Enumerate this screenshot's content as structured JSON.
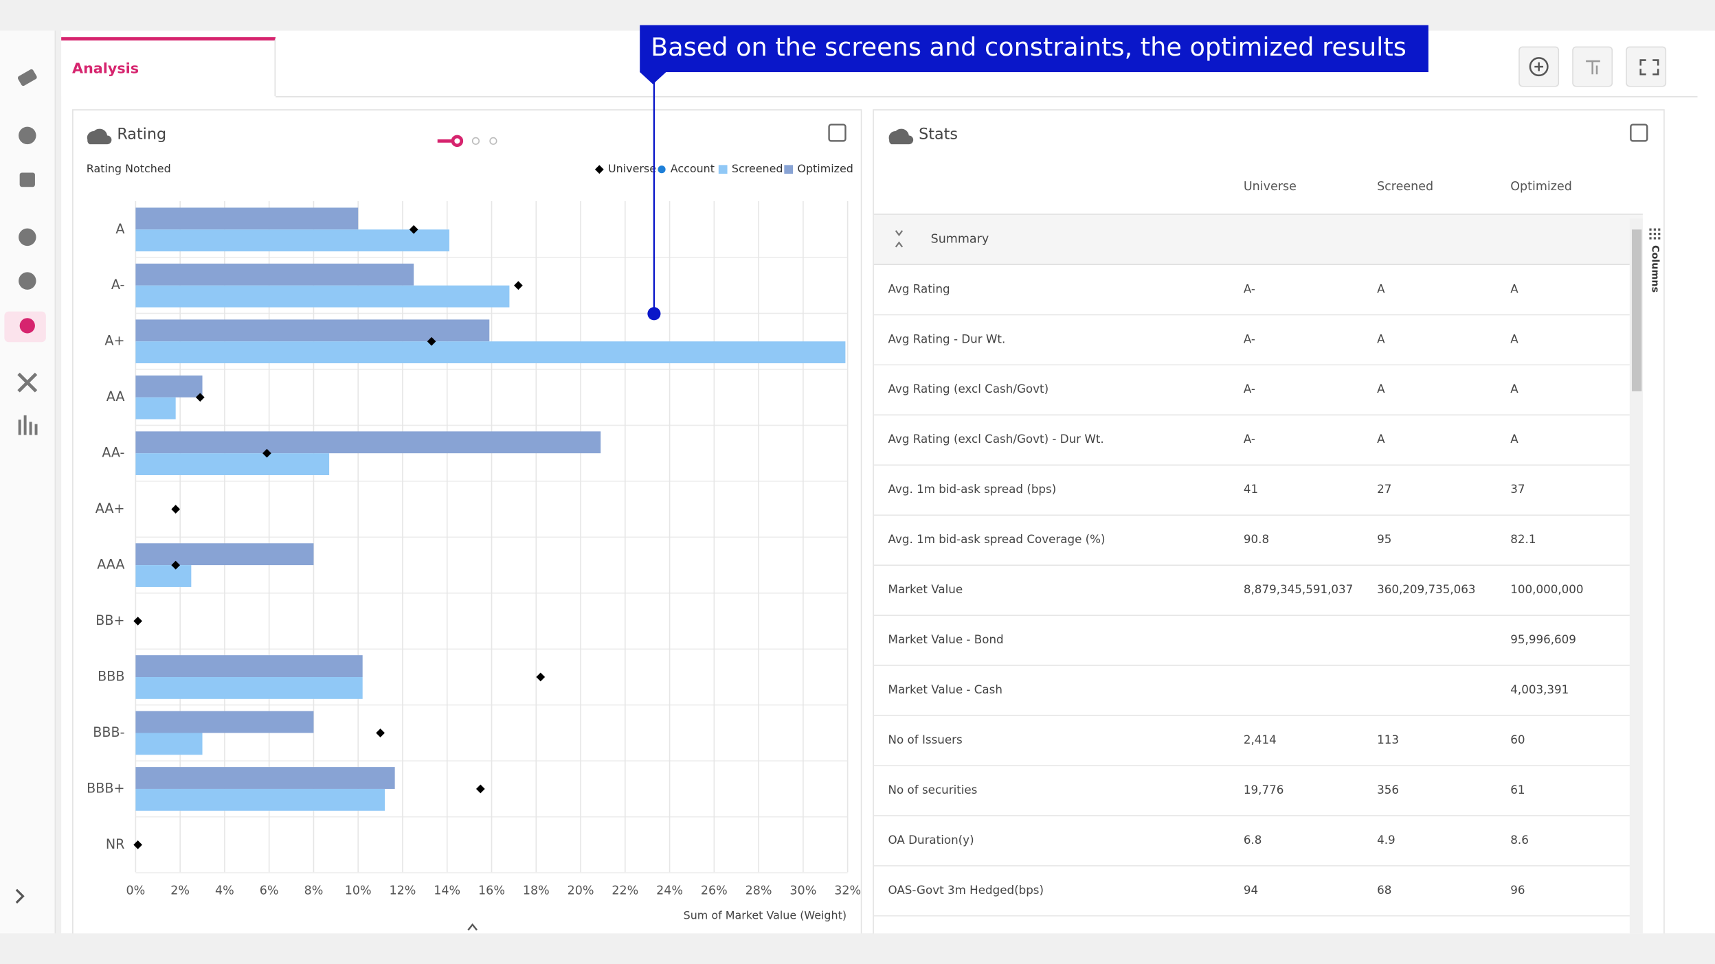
{
  "tab": "Analysis",
  "tooltip": "Based on the screens and constraints, the optimized results",
  "rating_panel": {
    "title": "Rating"
  },
  "chart_data": {
    "type": "bar",
    "orientation": "horizontal",
    "subtitle": "Rating Notched",
    "x_label": "Sum of Market Value (Weight)",
    "categories": [
      "A",
      "A-",
      "A+",
      "AA",
      "AA-",
      "AA+",
      "AAA",
      "BB+",
      "BBB",
      "BBB-",
      "BBB+",
      "NR"
    ],
    "series": [
      {
        "name": "Universe",
        "color": "#000000",
        "marker": "diamond",
        "values": [
          12.5,
          17.2,
          13.3,
          2.9,
          5.9,
          1.8,
          1.8,
          0.1,
          18.2,
          11.0,
          15.5,
          0.1
        ]
      },
      {
        "name": "Account",
        "color": "#1e7fd8",
        "marker": "circle",
        "values": [
          null,
          null,
          null,
          null,
          null,
          null,
          null,
          null,
          null,
          null,
          null,
          null
        ]
      },
      {
        "name": "Screened",
        "color": "#90c8f6",
        "values": [
          14.1,
          16.8,
          31.9,
          1.8,
          8.7,
          0,
          2.5,
          0,
          10.2,
          3.0,
          11.2,
          0
        ]
      },
      {
        "name": "Optimized",
        "color": "#88a3d4",
        "values": [
          10.0,
          12.5,
          15.9,
          3.0,
          20.9,
          0,
          8.0,
          0,
          10.2,
          8.0,
          11.65,
          0
        ]
      }
    ],
    "xlim": [
      0,
      32
    ],
    "xticks": [
      {
        "value": 0,
        "label": "0%"
      },
      {
        "value": 2,
        "label": "2%"
      },
      {
        "value": 4,
        "label": "4%"
      },
      {
        "value": 6,
        "label": "6%"
      },
      {
        "value": 8,
        "label": "8%"
      },
      {
        "value": 10,
        "label": "10%"
      },
      {
        "value": 12,
        "label": "12%"
      },
      {
        "value": 14,
        "label": "14%"
      },
      {
        "value": 16,
        "label": "16%"
      },
      {
        "value": 18,
        "label": "18%"
      },
      {
        "value": 20,
        "label": "20%"
      },
      {
        "value": 22,
        "label": "22%"
      },
      {
        "value": 24,
        "label": "24%"
      },
      {
        "value": 26,
        "label": "26%"
      },
      {
        "value": 28,
        "label": "28%"
      },
      {
        "value": 30,
        "label": "30%"
      },
      {
        "value": 32,
        "label": "32%"
      }
    ],
    "grid": true,
    "legend": "top-right"
  },
  "stats": {
    "title": "Stats",
    "columns": [
      "Universe",
      "Screened",
      "Optimized"
    ],
    "group": "Summary",
    "side_label": "Columns",
    "rows": [
      {
        "label": "Avg Rating",
        "values": [
          "A-",
          "A",
          "A"
        ]
      },
      {
        "label": "Avg Rating - Dur Wt.",
        "values": [
          "A-",
          "A",
          "A"
        ]
      },
      {
        "label": "Avg Rating (excl Cash/Govt)",
        "values": [
          "A-",
          "A",
          "A"
        ]
      },
      {
        "label": "Avg Rating (excl Cash/Govt) - Dur Wt.",
        "values": [
          "A-",
          "A",
          "A"
        ]
      },
      {
        "label": "Avg. 1m bid-ask spread (bps)",
        "values": [
          "41",
          "27",
          "37"
        ]
      },
      {
        "label": "Avg. 1m bid-ask spread Coverage (%)",
        "values": [
          "90.8",
          "95",
          "82.1"
        ]
      },
      {
        "label": "Market Value",
        "values": [
          "8,879,345,591,037",
          "360,209,735,063",
          "100,000,000"
        ]
      },
      {
        "label": "Market Value - Bond",
        "values": [
          null,
          null,
          "95,996,609"
        ]
      },
      {
        "label": "Market Value - Cash",
        "values": [
          null,
          null,
          "4,003,391"
        ]
      },
      {
        "label": "No of Issuers",
        "values": [
          "2,414",
          "113",
          "60"
        ]
      },
      {
        "label": "No of securities",
        "values": [
          "19,776",
          "356",
          "61"
        ]
      },
      {
        "label": "OA Duration(y)",
        "values": [
          "6.8",
          "4.9",
          "8.6"
        ]
      },
      {
        "label": "OAS-Govt 3m Hedged(bps)",
        "values": [
          "94",
          "68",
          "96"
        ]
      }
    ]
  }
}
